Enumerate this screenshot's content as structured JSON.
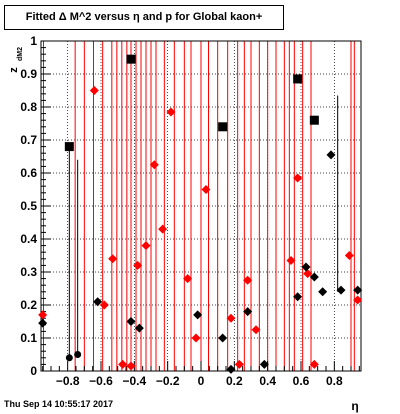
{
  "page": {
    "title": "Fitted Δ M^2 versus η and p for Global kaon+",
    "timestamp": "Thu Sep 14 10:55:17 2017"
  },
  "chart_data": {
    "type": "scatter",
    "title": "Fitted Δ M^2 versus η and p for Global kaon+",
    "xlabel": "η",
    "ylabel": "z",
    "ylabel_subscript": "dM2",
    "xlim": [
      -0.96,
      0.96
    ],
    "ylim": [
      0,
      1
    ],
    "x_ticks": [
      -0.8,
      -0.6,
      -0.4,
      -0.2,
      0,
      0.2,
      0.4,
      0.6,
      0.8
    ],
    "x_tick_labels": [
      "−0.8",
      "−0.6",
      "−0.4",
      "−0.2",
      "0",
      "0.2",
      "0.4",
      "0.6",
      "0.8"
    ],
    "y_ticks": [
      0,
      0.1,
      0.2,
      0.3,
      0.4,
      0.5,
      0.6,
      0.7,
      0.8,
      0.9,
      1
    ],
    "y_tick_labels": [
      "0",
      "0.1",
      "0.2",
      "0.3",
      "0.4",
      "0.5",
      "0.6",
      "0.7",
      "0.8",
      "0.9",
      "1"
    ],
    "grid": true,
    "colors": {
      "red": "#ff0000",
      "black": "#000000"
    },
    "red_lines_x": [
      -0.945,
      -0.755,
      -0.7,
      -0.645,
      -0.59,
      -0.535,
      -0.505,
      -0.475,
      -0.445,
      -0.42,
      -0.39,
      -0.36,
      -0.33,
      -0.3,
      -0.27,
      -0.22,
      -0.16,
      -0.1,
      -0.06,
      0.0,
      0.045,
      0.1,
      0.16,
      0.22,
      0.26,
      0.3,
      0.35,
      0.4,
      0.45,
      0.5,
      0.53,
      0.56,
      0.61,
      0.66,
      0.9,
      0.92
    ],
    "black_lines": [
      {
        "x": -0.79,
        "y0": 0.04,
        "y1": 0.68
      },
      {
        "x": -0.74,
        "y0": 0.05,
        "y1": 0.64
      },
      {
        "x": 0.82,
        "y0": 0.24,
        "y1": 0.835
      }
    ],
    "series": [
      {
        "color": "red",
        "marker": "diamond",
        "points": [
          [
            -0.95,
            0.17
          ],
          [
            -0.64,
            0.85
          ],
          [
            -0.58,
            0.2
          ],
          [
            -0.53,
            0.34
          ],
          [
            -0.47,
            0.02
          ],
          [
            -0.42,
            0.015
          ],
          [
            -0.38,
            0.32
          ],
          [
            -0.33,
            0.38
          ],
          [
            -0.28,
            0.625
          ],
          [
            -0.23,
            0.43
          ],
          [
            -0.18,
            0.785
          ],
          [
            -0.08,
            0.28
          ],
          [
            -0.03,
            0.1
          ],
          [
            0.03,
            0.55
          ],
          [
            0.18,
            0.16
          ],
          [
            0.23,
            0.02
          ],
          [
            0.28,
            0.275
          ],
          [
            0.33,
            0.125
          ],
          [
            0.54,
            0.335
          ],
          [
            0.58,
            0.585
          ],
          [
            0.64,
            0.295
          ],
          [
            0.68,
            0.02
          ],
          [
            0.89,
            0.35
          ],
          [
            0.94,
            0.215
          ]
        ]
      },
      {
        "color": "black",
        "marker": "diamond",
        "points": [
          [
            -0.95,
            0.145
          ],
          [
            -0.62,
            0.21
          ],
          [
            -0.42,
            0.15
          ],
          [
            -0.37,
            0.13
          ],
          [
            -0.02,
            0.17
          ],
          [
            0.13,
            0.1
          ],
          [
            0.18,
            0.005
          ],
          [
            0.28,
            0.18
          ],
          [
            0.38,
            0.02
          ],
          [
            0.58,
            0.225
          ],
          [
            0.63,
            0.315
          ],
          [
            0.68,
            0.285
          ],
          [
            0.73,
            0.24
          ],
          [
            0.78,
            0.655
          ],
          [
            0.84,
            0.245
          ],
          [
            0.94,
            0.245
          ]
        ]
      },
      {
        "color": "black",
        "marker": "square",
        "points": [
          [
            -0.79,
            0.68
          ],
          [
            -0.42,
            0.945
          ],
          [
            0.13,
            0.74
          ],
          [
            0.58,
            0.885
          ],
          [
            0.68,
            0.76
          ]
        ]
      },
      {
        "color": "black",
        "marker": "circle",
        "points": [
          [
            -0.79,
            0.04
          ],
          [
            -0.74,
            0.05
          ]
        ]
      }
    ]
  }
}
